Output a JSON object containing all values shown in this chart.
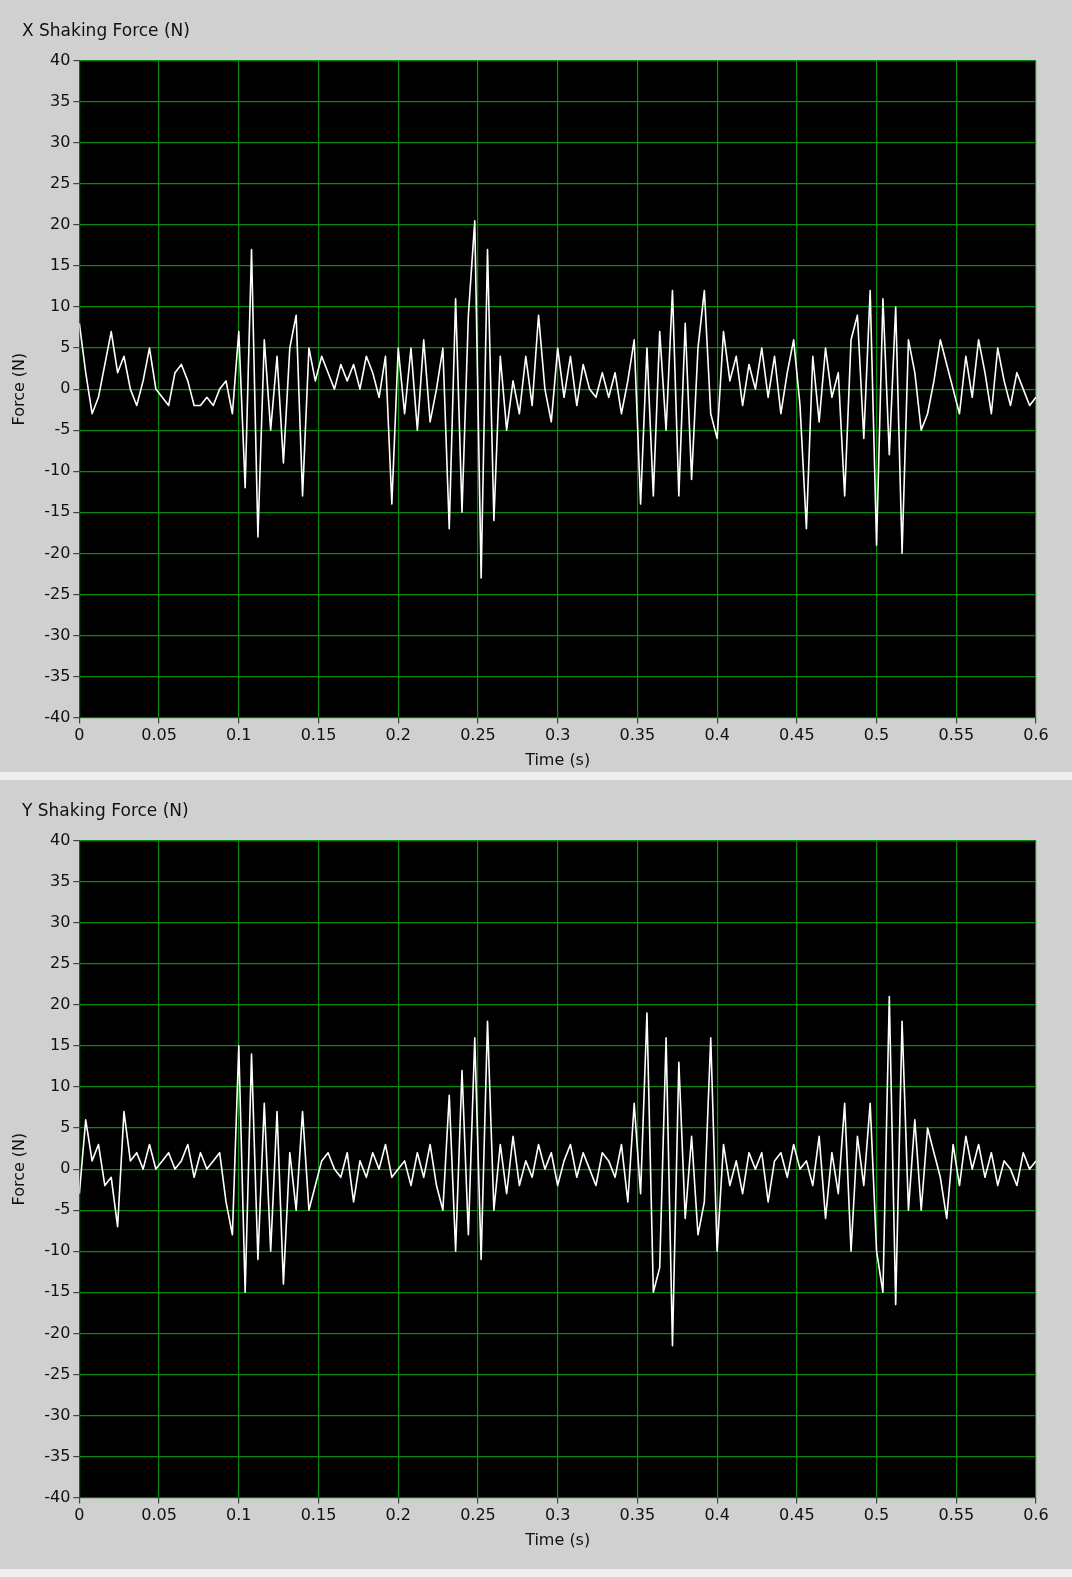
{
  "chart_data": [
    {
      "type": "line",
      "title": "X Shaking Force (N)",
      "xlabel": "Time (s)",
      "ylabel": "Force (N)",
      "grid": true,
      "x": [
        0,
        0.004,
        0.008,
        0.012,
        0.016,
        0.02,
        0.024,
        0.028,
        0.032,
        0.036,
        0.04,
        0.044,
        0.048,
        0.052,
        0.056,
        0.06,
        0.064,
        0.068,
        0.072,
        0.076,
        0.08,
        0.084,
        0.088,
        0.092,
        0.096,
        0.1,
        0.104,
        0.108,
        0.112,
        0.116,
        0.12,
        0.124,
        0.128,
        0.132,
        0.136,
        0.14,
        0.144,
        0.148,
        0.152,
        0.156,
        0.16,
        0.164,
        0.168,
        0.172,
        0.176,
        0.18,
        0.184,
        0.188,
        0.192,
        0.196,
        0.2,
        0.204,
        0.208,
        0.212,
        0.216,
        0.22,
        0.224,
        0.228,
        0.232,
        0.236,
        0.24,
        0.244,
        0.248,
        0.252,
        0.256,
        0.26,
        0.264,
        0.268,
        0.272,
        0.276,
        0.28,
        0.284,
        0.288,
        0.292,
        0.296,
        0.3,
        0.304,
        0.308,
        0.312,
        0.316,
        0.32,
        0.324,
        0.328,
        0.332,
        0.336,
        0.34,
        0.344,
        0.348,
        0.352,
        0.356,
        0.36,
        0.364,
        0.368,
        0.372,
        0.376,
        0.38,
        0.384,
        0.388,
        0.392,
        0.396,
        0.4,
        0.404,
        0.408,
        0.412,
        0.416,
        0.42,
        0.424,
        0.428,
        0.432,
        0.436,
        0.44,
        0.444,
        0.448,
        0.452,
        0.456,
        0.46,
        0.464,
        0.468,
        0.472,
        0.476,
        0.48,
        0.484,
        0.488,
        0.492,
        0.496,
        0.5,
        0.504,
        0.508,
        0.512,
        0.516,
        0.52,
        0.524,
        0.528,
        0.532,
        0.536,
        0.54,
        0.544,
        0.548,
        0.552,
        0.556,
        0.56,
        0.564,
        0.568,
        0.572,
        0.576,
        0.58,
        0.584,
        0.588,
        0.592,
        0.596,
        0.6
      ],
      "series": [
        {
          "color": "#ffffff",
          "values": [
            8,
            2,
            -3,
            -1,
            3,
            7,
            2,
            4,
            0,
            -2,
            1,
            5,
            0,
            -1,
            -2,
            2,
            3,
            1,
            -2,
            -2,
            -1,
            -2,
            0,
            1,
            -3,
            7,
            -12,
            17,
            -18,
            6,
            -5,
            4,
            -9,
            5,
            9,
            -13,
            5,
            1,
            4,
            2,
            0,
            3,
            1,
            3,
            0,
            4,
            2,
            -1,
            4,
            -14,
            5,
            -3,
            5,
            -5,
            6,
            -4,
            0,
            5,
            -17,
            11,
            -15,
            9,
            20.5,
            -23,
            17,
            -16,
            4,
            -5,
            1,
            -3,
            4,
            -2,
            9,
            0,
            -4,
            5,
            -1,
            4,
            -2,
            3,
            0,
            -1,
            2,
            -1,
            2,
            -3,
            1,
            6,
            -14,
            5,
            -13,
            7,
            -5,
            12,
            -13,
            8,
            -11,
            5,
            12,
            -3,
            -6,
            7,
            1,
            4,
            -2,
            3,
            0,
            5,
            -1,
            4,
            -3,
            2,
            6,
            -2,
            -17,
            4,
            -4,
            5,
            -1,
            2,
            -13,
            6,
            9,
            -6,
            12,
            -19,
            11,
            -8,
            10,
            -20,
            6,
            2,
            -5,
            -3,
            1,
            6,
            3,
            0,
            -3,
            4,
            -1,
            6,
            2,
            -3,
            5,
            1,
            -2,
            2,
            0,
            -2,
            -1
          ]
        }
      ],
      "xlim": [
        0,
        0.6
      ],
      "xticks": [
        0,
        0.05,
        0.1,
        0.15,
        0.2,
        0.25,
        0.3,
        0.35,
        0.4,
        0.45,
        0.5,
        0.55,
        0.6
      ],
      "ylim": [
        -40,
        40
      ],
      "yticks": [
        -40,
        -35,
        -30,
        -25,
        -20,
        -15,
        -10,
        -5,
        0,
        5,
        10,
        15,
        20,
        25,
        30,
        35,
        40
      ]
    },
    {
      "type": "line",
      "title": "Y Shaking Force (N)",
      "xlabel": "Time (s)",
      "ylabel": "Force (N)",
      "grid": true,
      "x": [
        0,
        0.004,
        0.008,
        0.012,
        0.016,
        0.02,
        0.024,
        0.028,
        0.032,
        0.036,
        0.04,
        0.044,
        0.048,
        0.052,
        0.056,
        0.06,
        0.064,
        0.068,
        0.072,
        0.076,
        0.08,
        0.084,
        0.088,
        0.092,
        0.096,
        0.1,
        0.104,
        0.108,
        0.112,
        0.116,
        0.12,
        0.124,
        0.128,
        0.132,
        0.136,
        0.14,
        0.144,
        0.148,
        0.152,
        0.156,
        0.16,
        0.164,
        0.168,
        0.172,
        0.176,
        0.18,
        0.184,
        0.188,
        0.192,
        0.196,
        0.2,
        0.204,
        0.208,
        0.212,
        0.216,
        0.22,
        0.224,
        0.228,
        0.232,
        0.236,
        0.24,
        0.244,
        0.248,
        0.252,
        0.256,
        0.26,
        0.264,
        0.268,
        0.272,
        0.276,
        0.28,
        0.284,
        0.288,
        0.292,
        0.296,
        0.3,
        0.304,
        0.308,
        0.312,
        0.316,
        0.32,
        0.324,
        0.328,
        0.332,
        0.336,
        0.34,
        0.344,
        0.348,
        0.352,
        0.356,
        0.36,
        0.364,
        0.368,
        0.372,
        0.376,
        0.38,
        0.384,
        0.388,
        0.392,
        0.396,
        0.4,
        0.404,
        0.408,
        0.412,
        0.416,
        0.42,
        0.424,
        0.428,
        0.432,
        0.436,
        0.44,
        0.444,
        0.448,
        0.452,
        0.456,
        0.46,
        0.464,
        0.468,
        0.472,
        0.476,
        0.48,
        0.484,
        0.488,
        0.492,
        0.496,
        0.5,
        0.504,
        0.508,
        0.512,
        0.516,
        0.52,
        0.524,
        0.528,
        0.532,
        0.536,
        0.54,
        0.544,
        0.548,
        0.552,
        0.556,
        0.56,
        0.564,
        0.568,
        0.572,
        0.576,
        0.58,
        0.584,
        0.588,
        0.592,
        0.596,
        0.6
      ],
      "series": [
        {
          "color": "#ffffff",
          "values": [
            -3,
            6,
            1,
            3,
            -2,
            -1,
            -7,
            7,
            1,
            2,
            0,
            3,
            0,
            1,
            2,
            0,
            1,
            3,
            -1,
            2,
            0,
            1,
            2,
            -4,
            -8,
            15,
            -15,
            14,
            -11,
            8,
            -10,
            7,
            -14,
            2,
            -5,
            7,
            -5,
            -2,
            1,
            2,
            0,
            -1,
            2,
            -4,
            1,
            -1,
            2,
            0,
            3,
            -1,
            0,
            1,
            -2,
            2,
            -1,
            3,
            -2,
            -5,
            9,
            -10,
            12,
            -8,
            16,
            -11,
            18,
            -5,
            3,
            -3,
            4,
            -2,
            1,
            -1,
            3,
            0,
            2,
            -2,
            1,
            3,
            -1,
            2,
            0,
            -2,
            2,
            1,
            -1,
            3,
            -4,
            8,
            -3,
            19,
            -15,
            -12,
            16,
            -21.5,
            13,
            -6,
            4,
            -8,
            -4,
            16,
            -10,
            3,
            -2,
            1,
            -3,
            2,
            0,
            2,
            -4,
            1,
            2,
            -1,
            3,
            0,
            1,
            -2,
            4,
            -6,
            2,
            -3,
            8,
            -10,
            4,
            -2,
            8,
            -10,
            -15,
            21,
            -16.5,
            18,
            -5,
            6,
            -5,
            5,
            2,
            -1,
            -6,
            3,
            -2,
            4,
            0,
            3,
            -1,
            2,
            -2,
            1,
            0,
            -2,
            2,
            0,
            1
          ]
        }
      ],
      "xlim": [
        0,
        0.6
      ],
      "xticks": [
        0,
        0.05,
        0.1,
        0.15,
        0.2,
        0.25,
        0.3,
        0.35,
        0.4,
        0.45,
        0.5,
        0.55,
        0.6
      ],
      "ylim": [
        -40,
        40
      ],
      "yticks": [
        -40,
        -35,
        -30,
        -25,
        -20,
        -15,
        -10,
        -5,
        0,
        5,
        10,
        15,
        20,
        25,
        30,
        35,
        40
      ]
    }
  ]
}
